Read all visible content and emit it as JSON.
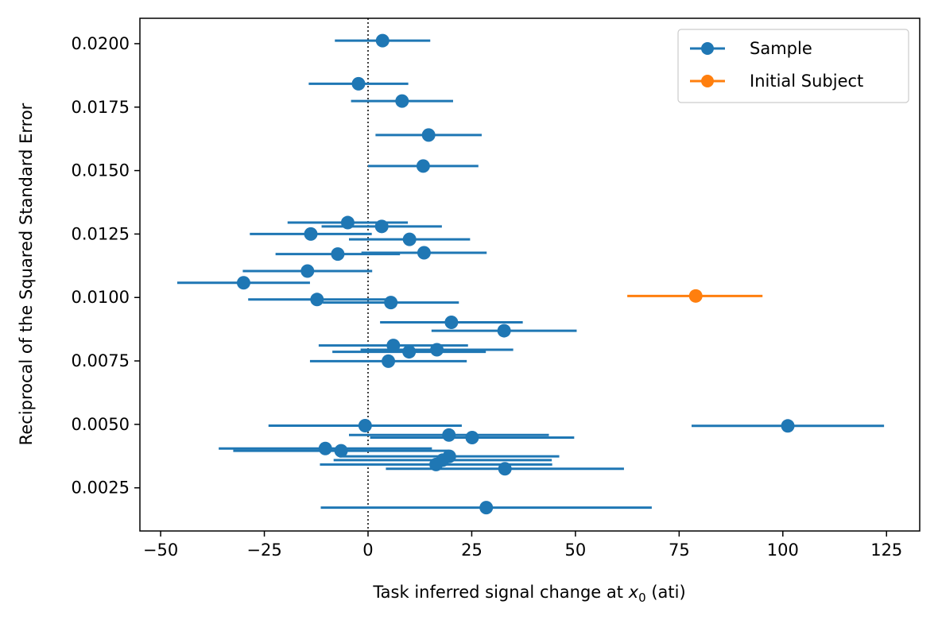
{
  "chart_data": {
    "type": "scatter",
    "title": "",
    "xlabel_prefix": "Task inferred signal change at ",
    "xlabel_var": "x",
    "xlabel_sub": "0",
    "xlabel_suffix": " (ati)",
    "ylabel": "Reciprocal of the Squared Standard Error",
    "xlim": [
      -55,
      133
    ],
    "ylim": [
      0.0008,
      0.021
    ],
    "xticks": [
      -50,
      -25,
      0,
      25,
      50,
      75,
      100,
      125
    ],
    "xtick_labels": [
      "−50",
      "−25",
      "0",
      "25",
      "50",
      "75",
      "100",
      "125"
    ],
    "yticks": [
      0.0025,
      0.005,
      0.0075,
      0.01,
      0.0125,
      0.015,
      0.0175,
      0.02
    ],
    "ytick_labels": [
      "0.0025",
      "0.0050",
      "0.0075",
      "0.0100",
      "0.0125",
      "0.0150",
      "0.0175",
      "0.0200"
    ],
    "reference_line": {
      "x": 0,
      "style": "dotted"
    },
    "grid": false,
    "legend_position": "top-right",
    "colors": {
      "sample": "#1f77b4",
      "initial": "#ff7f0e"
    },
    "series": [
      {
        "name": "Sample",
        "color": "#1f77b4",
        "points": [
          {
            "x": 3.5,
            "y": 0.02012,
            "xerr_low": -8.0,
            "xerr_high": 15.0
          },
          {
            "x": -2.3,
            "y": 0.01842,
            "xerr_low": -14.3,
            "xerr_high": 9.7
          },
          {
            "x": 8.2,
            "y": 0.01774,
            "xerr_low": -4.1,
            "xerr_high": 20.5
          },
          {
            "x": 14.6,
            "y": 0.0164,
            "xerr_low": 1.8,
            "xerr_high": 27.4
          },
          {
            "x": 13.3,
            "y": 0.01518,
            "xerr_low": 0.0,
            "xerr_high": 26.6
          },
          {
            "x": -4.9,
            "y": 0.01295,
            "xerr_low": -19.4,
            "xerr_high": 9.6
          },
          {
            "x": 3.3,
            "y": 0.0128,
            "xerr_low": -11.2,
            "xerr_high": 17.8
          },
          {
            "x": -13.8,
            "y": 0.0125,
            "xerr_low": -28.5,
            "xerr_high": 0.9
          },
          {
            "x": 10.0,
            "y": 0.01229,
            "xerr_low": -4.6,
            "xerr_high": 24.6
          },
          {
            "x": -7.3,
            "y": 0.01171,
            "xerr_low": -22.3,
            "xerr_high": 7.7
          },
          {
            "x": 13.5,
            "y": 0.01176,
            "xerr_low": -1.6,
            "xerr_high": 28.6
          },
          {
            "x": -14.6,
            "y": 0.01104,
            "xerr_low": -30.2,
            "xerr_high": 1.0
          },
          {
            "x": -30.0,
            "y": 0.01058,
            "xerr_low": -46.0,
            "xerr_high": -14.0
          },
          {
            "x": -12.3,
            "y": 0.00992,
            "xerr_low": -28.9,
            "xerr_high": 4.3
          },
          {
            "x": 5.5,
            "y": 0.0098,
            "xerr_low": -10.9,
            "xerr_high": 21.9
          },
          {
            "x": 20.1,
            "y": 0.00902,
            "xerr_low": 2.9,
            "xerr_high": 37.3
          },
          {
            "x": 32.8,
            "y": 0.00869,
            "xerr_low": 15.3,
            "xerr_high": 50.3
          },
          {
            "x": 6.1,
            "y": 0.00811,
            "xerr_low": -11.9,
            "xerr_high": 24.1
          },
          {
            "x": 16.6,
            "y": 0.00794,
            "xerr_low": -1.8,
            "xerr_high": 35.0
          },
          {
            "x": 9.9,
            "y": 0.00786,
            "xerr_low": -8.6,
            "xerr_high": 28.4
          },
          {
            "x": 4.9,
            "y": 0.00749,
            "xerr_low": -14.0,
            "xerr_high": 23.8
          },
          {
            "x": -0.7,
            "y": 0.00495,
            "xerr_low": -24.0,
            "xerr_high": 22.6
          },
          {
            "x": 19.5,
            "y": 0.00458,
            "xerr_low": -4.6,
            "xerr_high": 43.6
          },
          {
            "x": 25.1,
            "y": 0.00448,
            "xerr_low": 0.5,
            "xerr_high": 49.7
          },
          {
            "x": -10.3,
            "y": 0.00405,
            "xerr_low": -36.0,
            "xerr_high": 15.4
          },
          {
            "x": -6.5,
            "y": 0.00396,
            "xerr_low": -32.5,
            "xerr_high": 19.5
          },
          {
            "x": 19.6,
            "y": 0.00374,
            "xerr_low": -6.9,
            "xerr_high": 46.1
          },
          {
            "x": 18.0,
            "y": 0.00359,
            "xerr_low": -8.3,
            "xerr_high": 44.3
          },
          {
            "x": 16.4,
            "y": 0.00342,
            "xerr_low": -11.6,
            "xerr_high": 44.4
          },
          {
            "x": 33.0,
            "y": 0.00325,
            "xerr_low": 4.3,
            "xerr_high": 61.7
          },
          {
            "x": 28.5,
            "y": 0.00172,
            "xerr_low": -11.4,
            "xerr_high": 68.4
          },
          {
            "x": 101.2,
            "y": 0.00494,
            "xerr_low": 78.0,
            "xerr_high": 124.4
          }
        ]
      },
      {
        "name": "Initial Subject",
        "color": "#ff7f0e",
        "points": [
          {
            "x": 79.0,
            "y": 0.01006,
            "xerr_low": 62.5,
            "xerr_high": 95.1
          }
        ]
      }
    ]
  }
}
